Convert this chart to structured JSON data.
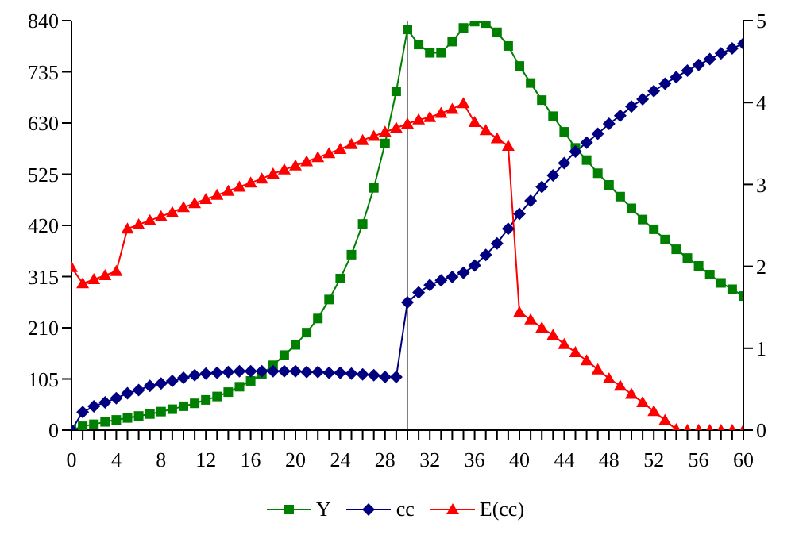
{
  "chart_data": {
    "type": "line",
    "x": [
      0,
      1,
      2,
      3,
      4,
      5,
      6,
      7,
      8,
      9,
      10,
      11,
      12,
      13,
      14,
      15,
      16,
      17,
      18,
      19,
      20,
      21,
      22,
      23,
      24,
      25,
      26,
      27,
      28,
      29,
      30,
      31,
      32,
      33,
      34,
      35,
      36,
      37,
      38,
      39,
      40,
      41,
      42,
      43,
      44,
      45,
      46,
      47,
      48,
      49,
      50,
      51,
      52,
      53,
      54,
      55,
      56,
      57,
      58,
      59,
      60
    ],
    "series": [
      {
        "name": "Y",
        "color": "#008000",
        "marker": "square",
        "values": [
          0,
          8,
          12,
          17,
          21,
          25,
          29,
          33,
          38,
          43,
          49,
          55,
          62,
          69,
          78,
          89,
          101,
          115,
          133,
          154,
          175,
          200,
          229,
          268,
          311,
          360,
          423,
          497,
          588,
          695,
          822,
          791,
          774,
          774,
          797,
          825,
          838,
          835,
          816,
          788,
          747,
          712,
          677,
          644,
          612,
          579,
          554,
          527,
          503,
          479,
          455,
          432,
          412,
          391,
          371,
          353,
          337,
          319,
          302,
          289,
          275
        ]
      },
      {
        "name": "cc",
        "color": "#000080",
        "marker": "diamond",
        "axis": "y2",
        "values": [
          0,
          0.22,
          0.29,
          0.34,
          0.39,
          0.45,
          0.49,
          0.54,
          0.57,
          0.6,
          0.64,
          0.67,
          0.69,
          0.7,
          0.71,
          0.72,
          0.72,
          0.72,
          0.72,
          0.72,
          0.72,
          0.71,
          0.71,
          0.7,
          0.7,
          0.69,
          0.68,
          0.67,
          0.65,
          0.65,
          1.56,
          1.68,
          1.77,
          1.83,
          1.87,
          1.92,
          2.01,
          2.14,
          2.28,
          2.46,
          2.64,
          2.8,
          2.97,
          3.11,
          3.26,
          3.4,
          3.51,
          3.62,
          3.74,
          3.84,
          3.95,
          4.04,
          4.14,
          4.23,
          4.31,
          4.39,
          4.46,
          4.53,
          4.6,
          4.66,
          4.72
        ]
      },
      {
        "name": "E(cc)",
        "color": "#ff0000",
        "marker": "triangle",
        "axis": "y2",
        "values": [
          1.99,
          1.79,
          1.84,
          1.89,
          1.94,
          2.46,
          2.51,
          2.56,
          2.61,
          2.66,
          2.72,
          2.77,
          2.82,
          2.87,
          2.92,
          2.97,
          3.02,
          3.07,
          3.13,
          3.18,
          3.23,
          3.28,
          3.33,
          3.38,
          3.43,
          3.49,
          3.54,
          3.59,
          3.64,
          3.69,
          3.74,
          3.79,
          3.82,
          3.87,
          3.92,
          3.99,
          3.76,
          3.66,
          3.56,
          3.47,
          1.44,
          1.35,
          1.25,
          1.16,
          1.05,
          0.95,
          0.85,
          0.74,
          0.63,
          0.54,
          0.44,
          0.34,
          0.23,
          0.12,
          0.01,
          0,
          0,
          0,
          0,
          0,
          0
        ]
      }
    ],
    "xlim": [
      0,
      60
    ],
    "xticks": [
      0,
      {
        "value": 1,
        "label": null
      },
      {
        "value": 2,
        "label": null
      },
      {
        "value": 3,
        "label": null
      },
      4,
      {
        "value": 5,
        "label": null
      },
      {
        "value": 6,
        "label": null
      },
      {
        "value": 7,
        "label": null
      },
      8,
      {
        "value": 9,
        "label": null
      },
      {
        "value": 10,
        "label": null
      },
      {
        "value": 11,
        "label": null
      },
      12,
      {
        "value": 13,
        "label": null
      },
      {
        "value": 14,
        "label": null
      },
      {
        "value": 15,
        "label": null
      },
      16,
      {
        "value": 17,
        "label": null
      },
      {
        "value": 18,
        "label": null
      },
      {
        "value": 19,
        "label": null
      },
      20,
      {
        "value": 21,
        "label": null
      },
      {
        "value": 22,
        "label": null
      },
      {
        "value": 23,
        "label": null
      },
      24,
      {
        "value": 25,
        "label": null
      },
      {
        "value": 26,
        "label": null
      },
      {
        "value": 27,
        "label": null
      },
      28,
      {
        "value": 29,
        "label": null
      },
      {
        "value": 30,
        "label": null
      },
      {
        "value": 31,
        "label": null
      },
      32,
      {
        "value": 33,
        "label": null
      },
      {
        "value": 34,
        "label": null
      },
      {
        "value": 35,
        "label": null
      },
      36,
      {
        "value": 37,
        "label": null
      },
      {
        "value": 38,
        "label": null
      },
      {
        "value": 39,
        "label": null
      },
      40,
      {
        "value": 41,
        "label": null
      },
      {
        "value": 42,
        "label": null
      },
      {
        "value": 43,
        "label": null
      },
      44,
      {
        "value": 45,
        "label": null
      },
      {
        "value": 46,
        "label": null
      },
      {
        "value": 47,
        "label": null
      },
      48,
      {
        "value": 49,
        "label": null
      },
      {
        "value": 50,
        "label": null
      },
      {
        "value": 51,
        "label": null
      },
      52,
      {
        "value": 53,
        "label": null
      },
      {
        "value": 54,
        "label": null
      },
      {
        "value": 55,
        "label": null
      },
      56,
      {
        "value": 57,
        "label": null
      },
      {
        "value": 58,
        "label": null
      },
      {
        "value": 59,
        "label": null
      },
      60
    ],
    "ylim": [
      0,
      840
    ],
    "yticks": [
      0,
      105,
      210,
      315,
      420,
      525,
      630,
      735,
      840
    ],
    "y2lim": [
      0,
      5
    ],
    "y2ticks": [
      0,
      1,
      2,
      3,
      4,
      5
    ],
    "ref_lines": [
      {
        "axis": "x",
        "value": 30,
        "color": "#808080"
      }
    ],
    "grid": false,
    "legend": "bottom",
    "line_style": "solid"
  }
}
